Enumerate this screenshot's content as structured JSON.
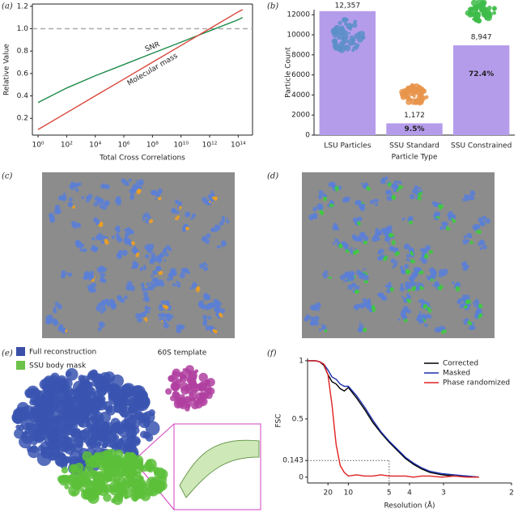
{
  "chart_data": [
    {
      "type": "line",
      "label": "(a)",
      "xlabel": "Total Cross Correlations",
      "ylabel": "Relative Value",
      "xscale": "log",
      "xlim": [
        0.4,
        1000000000000000.0
      ],
      "ylim": [
        0.05,
        1.22
      ],
      "xticks": [
        {
          "value": 1,
          "label": "10⁰"
        },
        {
          "value": 100,
          "label": "10²"
        },
        {
          "value": 10000,
          "label": "10⁴"
        },
        {
          "value": 1000000,
          "label": "10⁶"
        },
        {
          "value": 100000000,
          "label": "10⁸"
        },
        {
          "value": 10000000000,
          "label": "10¹⁰"
        },
        {
          "value": 1000000000000,
          "label": "10¹²"
        },
        {
          "value": 100000000000000,
          "label": "10¹⁴"
        }
      ],
      "yticks": [
        0.2,
        0.4,
        0.6,
        0.8,
        {
          "value": 1,
          "label": "1.0"
        },
        1.2
      ],
      "reference_line": 1,
      "legend": "inline",
      "x": [
        1,
        100,
        10000,
        1000000,
        100000000,
        10000000000,
        1000000000000,
        100000000000000,
        200000000000000
      ],
      "series": [
        {
          "name": "SNR",
          "color": "#1e8a4a",
          "values": [
            0.34,
            0.47,
            0.58,
            0.68,
            0.78,
            0.88,
            0.98,
            1.08,
            1.1
          ]
        },
        {
          "name": "Molecular mass",
          "color": "#d9463c",
          "values": [
            0.1,
            0.25,
            0.4,
            0.55,
            0.7,
            0.85,
            1.0,
            1.15,
            1.17
          ]
        }
      ]
    },
    {
      "type": "bar",
      "label": "(b)",
      "xlabel": "Particle Type",
      "ylabel": "Particle Count",
      "categories": [
        "LSU Particles",
        "SSU Standard",
        "SSU Constrained"
      ],
      "values": [
        12357,
        1172,
        8947
      ],
      "value_labels": [
        "12,357",
        "1,172",
        "8,947"
      ],
      "percentages": [
        null,
        9.5,
        72.4
      ],
      "percentage_labels": [
        null,
        "9.5%",
        "72.4%"
      ],
      "color": "#b59ceb",
      "ylim": [
        0,
        12500
      ],
      "yticks": [
        0,
        2000,
        4000,
        6000,
        8000,
        10000,
        12000
      ]
    },
    {
      "type": "line",
      "label": "(f)",
      "xlabel": "Resolution (Å)",
      "ylabel": "FSC",
      "xlim": [
        0,
        0.5
      ],
      "ylim": [
        -0.05,
        1.02
      ],
      "xticks": [
        {
          "value": 0.05,
          "label": "20"
        },
        {
          "value": 0.1,
          "label": "10"
        },
        {
          "value": 0.2,
          "label": "5"
        },
        {
          "value": 0.25,
          "label": "4"
        },
        {
          "value": 0.3333,
          "label": "3"
        },
        {
          "value": 0.5,
          "label": "2"
        }
      ],
      "yticks": [
        0,
        0.143,
        0.5,
        1
      ],
      "threshold": 0.143,
      "threshold_x": 0.2,
      "legend": "upper right",
      "x": [
        0,
        0.02,
        0.03,
        0.04,
        0.05,
        0.06,
        0.07,
        0.08,
        0.09,
        0.1,
        0.12,
        0.14,
        0.16,
        0.18,
        0.2,
        0.22,
        0.24,
        0.26,
        0.28,
        0.3,
        0.33,
        0.36,
        0.39,
        0.42
      ],
      "series": [
        {
          "name": "Corrected",
          "color": "#000000",
          "values": [
            1,
            1,
            0.99,
            0.96,
            0.88,
            0.82,
            0.8,
            0.76,
            0.74,
            0.77,
            0.68,
            0.58,
            0.47,
            0.38,
            0.3,
            0.23,
            0.16,
            0.11,
            0.07,
            0.04,
            0.02,
            0.01,
            0.01,
            0
          ]
        },
        {
          "name": "Masked",
          "color": "#1c2fa8",
          "values": [
            1,
            1,
            0.99,
            0.97,
            0.92,
            0.86,
            0.84,
            0.8,
            0.78,
            0.78,
            0.7,
            0.6,
            0.49,
            0.39,
            0.31,
            0.24,
            0.17,
            0.12,
            0.08,
            0.05,
            0.03,
            0.02,
            0.01,
            0
          ]
        },
        {
          "name": "Phase randomized",
          "color": "#e02020",
          "values": [
            1,
            1,
            0.99,
            0.97,
            0.88,
            0.62,
            0.28,
            0.1,
            0.04,
            0.01,
            0.02,
            0.01,
            0.01,
            0.02,
            0.01,
            0.01,
            0.01,
            0,
            0.01,
            0.01,
            0,
            0.01,
            0,
            0
          ]
        }
      ]
    }
  ],
  "figure": {
    "panel_c": "(c)",
    "panel_d": "(d)",
    "panel_e": "(e)",
    "legend_full": "Full reconstruction",
    "legend_mask": "SSU body mask",
    "inset_title": "60S template"
  }
}
